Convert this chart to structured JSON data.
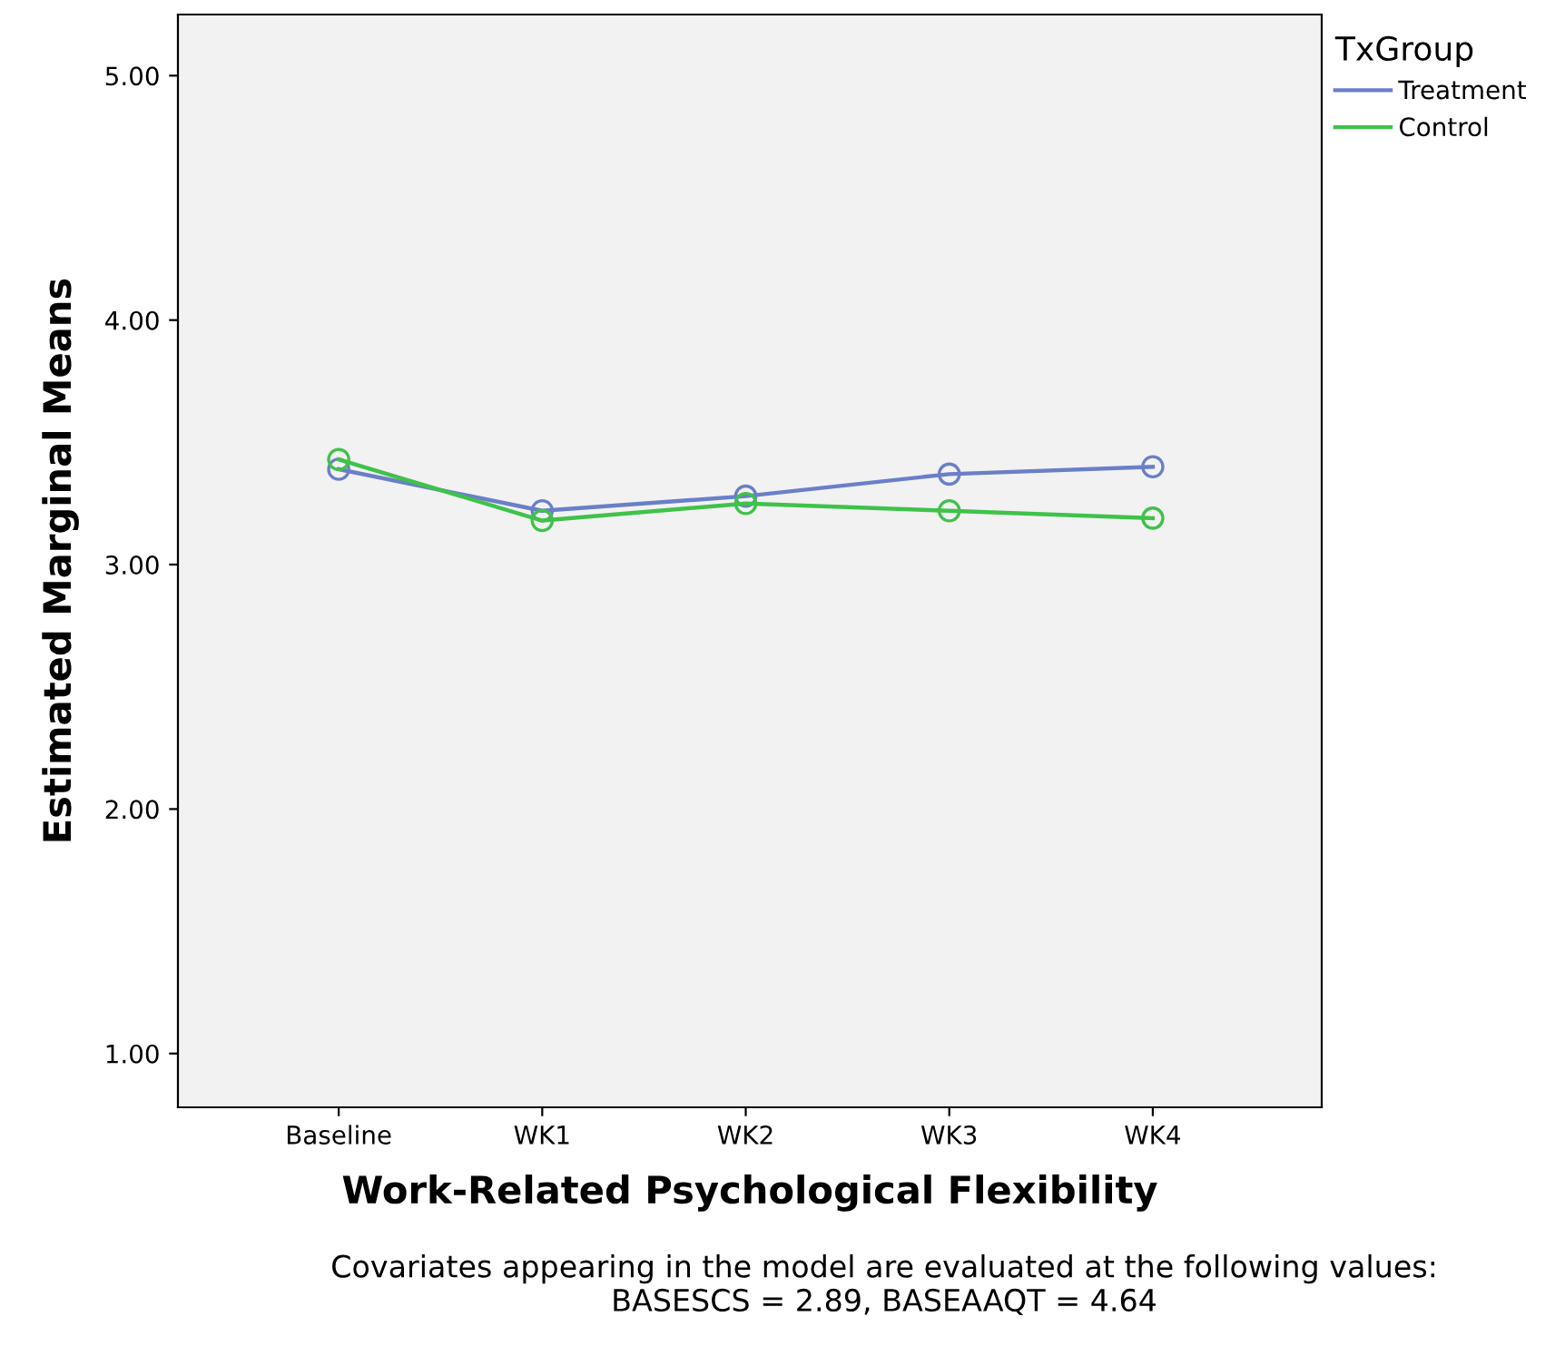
{
  "chart_data": {
    "type": "line",
    "xlabel": "Work-Related Psychological Flexibility",
    "ylabel": "Estimated Marginal Means",
    "legend_title": "TxGroup",
    "categories": [
      "Baseline",
      "WK1",
      "WK2",
      "WK3",
      "WK4"
    ],
    "series": [
      {
        "name": "Treatment",
        "color": "#6a7fc8",
        "values": [
          3.39,
          3.22,
          3.28,
          3.37,
          3.4
        ]
      },
      {
        "name": "Control",
        "color": "#3fc24a",
        "values": [
          3.43,
          3.18,
          3.25,
          3.22,
          3.19
        ]
      }
    ],
    "ylim": [
      0.78,
      5.25
    ],
    "yticks": [
      {
        "value": 1,
        "label": "1.00"
      },
      {
        "value": 2,
        "label": "2.00"
      },
      {
        "value": 3,
        "label": "3.00"
      },
      {
        "value": 4,
        "label": "4.00"
      },
      {
        "value": 5,
        "label": "5.00"
      }
    ],
    "marker": "circle",
    "line_style": "solid",
    "grid": false,
    "legend": "top right",
    "annotations": [
      "Covariates appearing in the model are evaluated at the following values:\nBASESCS = 2.89, BASEAAQT = 4.64"
    ]
  }
}
